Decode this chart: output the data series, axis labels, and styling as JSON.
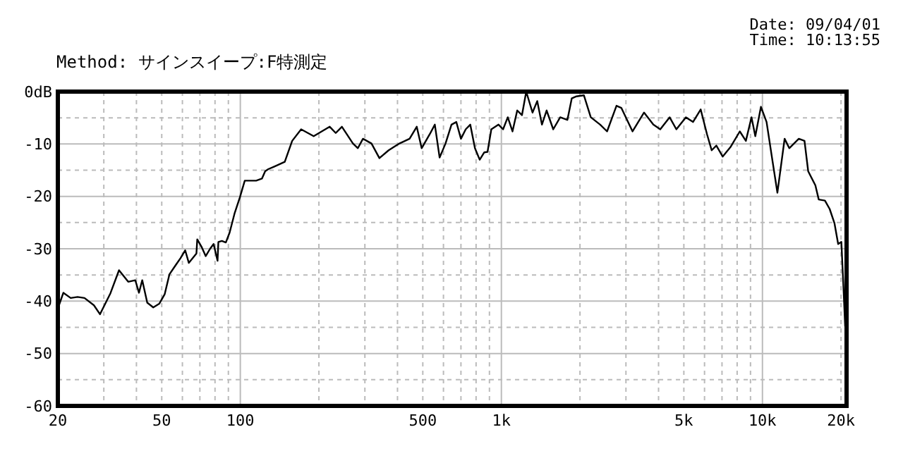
{
  "chart_data": {
    "type": "line",
    "title": "Method: サインスイープ:F特測定",
    "annotations": [
      "Date: 09/04/01",
      "Time: 10:13:55"
    ],
    "log": "x",
    "grid": true,
    "marker": "none",
    "line_style": "solid",
    "xlim": [
      20,
      21000
    ],
    "xticks": [
      20,
      {
        "value": 30,
        "label": null
      },
      {
        "value": 40,
        "label": null
      },
      50,
      {
        "value": 60,
        "label": null
      },
      {
        "value": 70,
        "label": null
      },
      {
        "value": 80,
        "label": null
      },
      {
        "value": 90,
        "label": null
      },
      100,
      {
        "value": 200,
        "label": null
      },
      {
        "value": 300,
        "label": null
      },
      {
        "value": 400,
        "label": null
      },
      500,
      {
        "value": 600,
        "label": null
      },
      {
        "value": 700,
        "label": null
      },
      {
        "value": 800,
        "label": null
      },
      {
        "value": 900,
        "label": null
      },
      {
        "value": 1000,
        "label": "1k"
      },
      {
        "value": 2000,
        "label": null
      },
      {
        "value": 3000,
        "label": null
      },
      {
        "value": 4000,
        "label": null
      },
      {
        "value": 5000,
        "label": "5k"
      },
      {
        "value": 6000,
        "label": null
      },
      {
        "value": 7000,
        "label": null
      },
      {
        "value": 8000,
        "label": null
      },
      {
        "value": 9000,
        "label": null
      },
      {
        "value": 10000,
        "label": "10k"
      },
      {
        "value": 20000,
        "label": "20k"
      }
    ],
    "ylim": [
      -60,
      0
    ],
    "yticks": [
      {
        "value": 0,
        "label": "0dB"
      },
      {
        "value": -5,
        "label": null
      },
      -10,
      {
        "value": -15,
        "label": null
      },
      -20,
      {
        "value": -25,
        "label": null
      },
      -30,
      {
        "value": -35,
        "label": null
      },
      -40,
      {
        "value": -45,
        "label": null
      },
      -50,
      {
        "value": -55,
        "label": null
      },
      -60
    ],
    "series": [
      {
        "color": "#000000",
        "x": [
          20,
          21,
          22.4,
          23.8,
          25.3,
          27.5,
          29,
          31.8,
          34.3,
          37.2,
          39.6,
          40.9,
          42.1,
          44,
          46.4,
          48.9,
          51.3,
          53.5,
          56.6,
          59,
          61.5,
          63.5,
          67.9,
          68.4,
          71,
          73.7,
          76.6,
          79,
          81.8,
          82.4,
          85,
          88,
          91,
          95,
          99.6,
          104,
          115,
          121,
          124.5,
          128,
          135,
          148,
          158,
          171,
          191,
          220,
          232,
          245,
          270,
          282,
          295,
          318,
          341,
          370,
          407,
          445,
          474,
          495,
          532,
          556,
          580,
          611,
          644,
          672,
          700,
          730,
          760,
          792,
          826,
          860,
          885,
          915,
          975,
          1015,
          1058,
          1103,
          1150,
          1199,
          1245,
          1316,
          1372,
          1430,
          1490,
          1580,
          1680,
          1790,
          1860,
          1940,
          2070,
          2200,
          2390,
          2540,
          2760,
          2880,
          3180,
          3520,
          3820,
          4060,
          4410,
          4680,
          5090,
          5420,
          5800,
          6130,
          6390,
          6660,
          7040,
          7540,
          8190,
          8640,
          9080,
          9390,
          9870,
          10370,
          10940,
          11410,
          12160,
          12670,
          13780,
          14490,
          14970,
          15950,
          16430,
          17350,
          18090,
          18870,
          19500,
          20060,
          20480,
          20740
        ],
        "values": [
          -41.4,
          -38.4,
          -39.4,
          -39.2,
          -39.4,
          -40.8,
          -42.5,
          -38.5,
          -34.1,
          -36.3,
          -36,
          -38.4,
          -36,
          -40.3,
          -41.2,
          -40.5,
          -38.7,
          -34.9,
          -33.1,
          -31.8,
          -30.3,
          -32.7,
          -30.9,
          -28.2,
          -29.6,
          -31.4,
          -30,
          -29.1,
          -32.3,
          -28.7,
          -28.5,
          -28.8,
          -26.9,
          -23.3,
          -20.2,
          -17,
          -17,
          -16.6,
          -15.2,
          -14.8,
          -14.3,
          -13.4,
          -9.4,
          -7.2,
          -8.5,
          -6.7,
          -7.9,
          -6.7,
          -9.9,
          -10.8,
          -9,
          -9.9,
          -12.7,
          -11.2,
          -9.9,
          -9,
          -6.7,
          -10.8,
          -8.1,
          -6.3,
          -12.6,
          -9.9,
          -6.3,
          -5.8,
          -9,
          -7.2,
          -6.3,
          -10.8,
          -13,
          -11.6,
          -11.5,
          -7.2,
          -6.3,
          -7.2,
          -4.9,
          -7.6,
          -3.6,
          -4.5,
          0,
          -4,
          -1.8,
          -6.3,
          -3.6,
          -7.2,
          -4.9,
          -5.4,
          -1.3,
          -0.9,
          -0.7,
          -4.9,
          -6.3,
          -7.6,
          -2.7,
          -3.1,
          -7.6,
          -4,
          -6.3,
          -7.2,
          -4.9,
          -7.2,
          -4.9,
          -5.8,
          -3.4,
          -8.1,
          -11.2,
          -10.3,
          -12.4,
          -10.6,
          -7.6,
          -9.4,
          -4.9,
          -8.5,
          -2.9,
          -5.8,
          -13.4,
          -19.3,
          -9,
          -10.8,
          -9,
          -9.4,
          -15.2,
          -17.9,
          -20.6,
          -20.8,
          -22.4,
          -25.1,
          -29.1,
          -28.7,
          -38.5,
          -44.8
        ]
      }
    ]
  }
}
